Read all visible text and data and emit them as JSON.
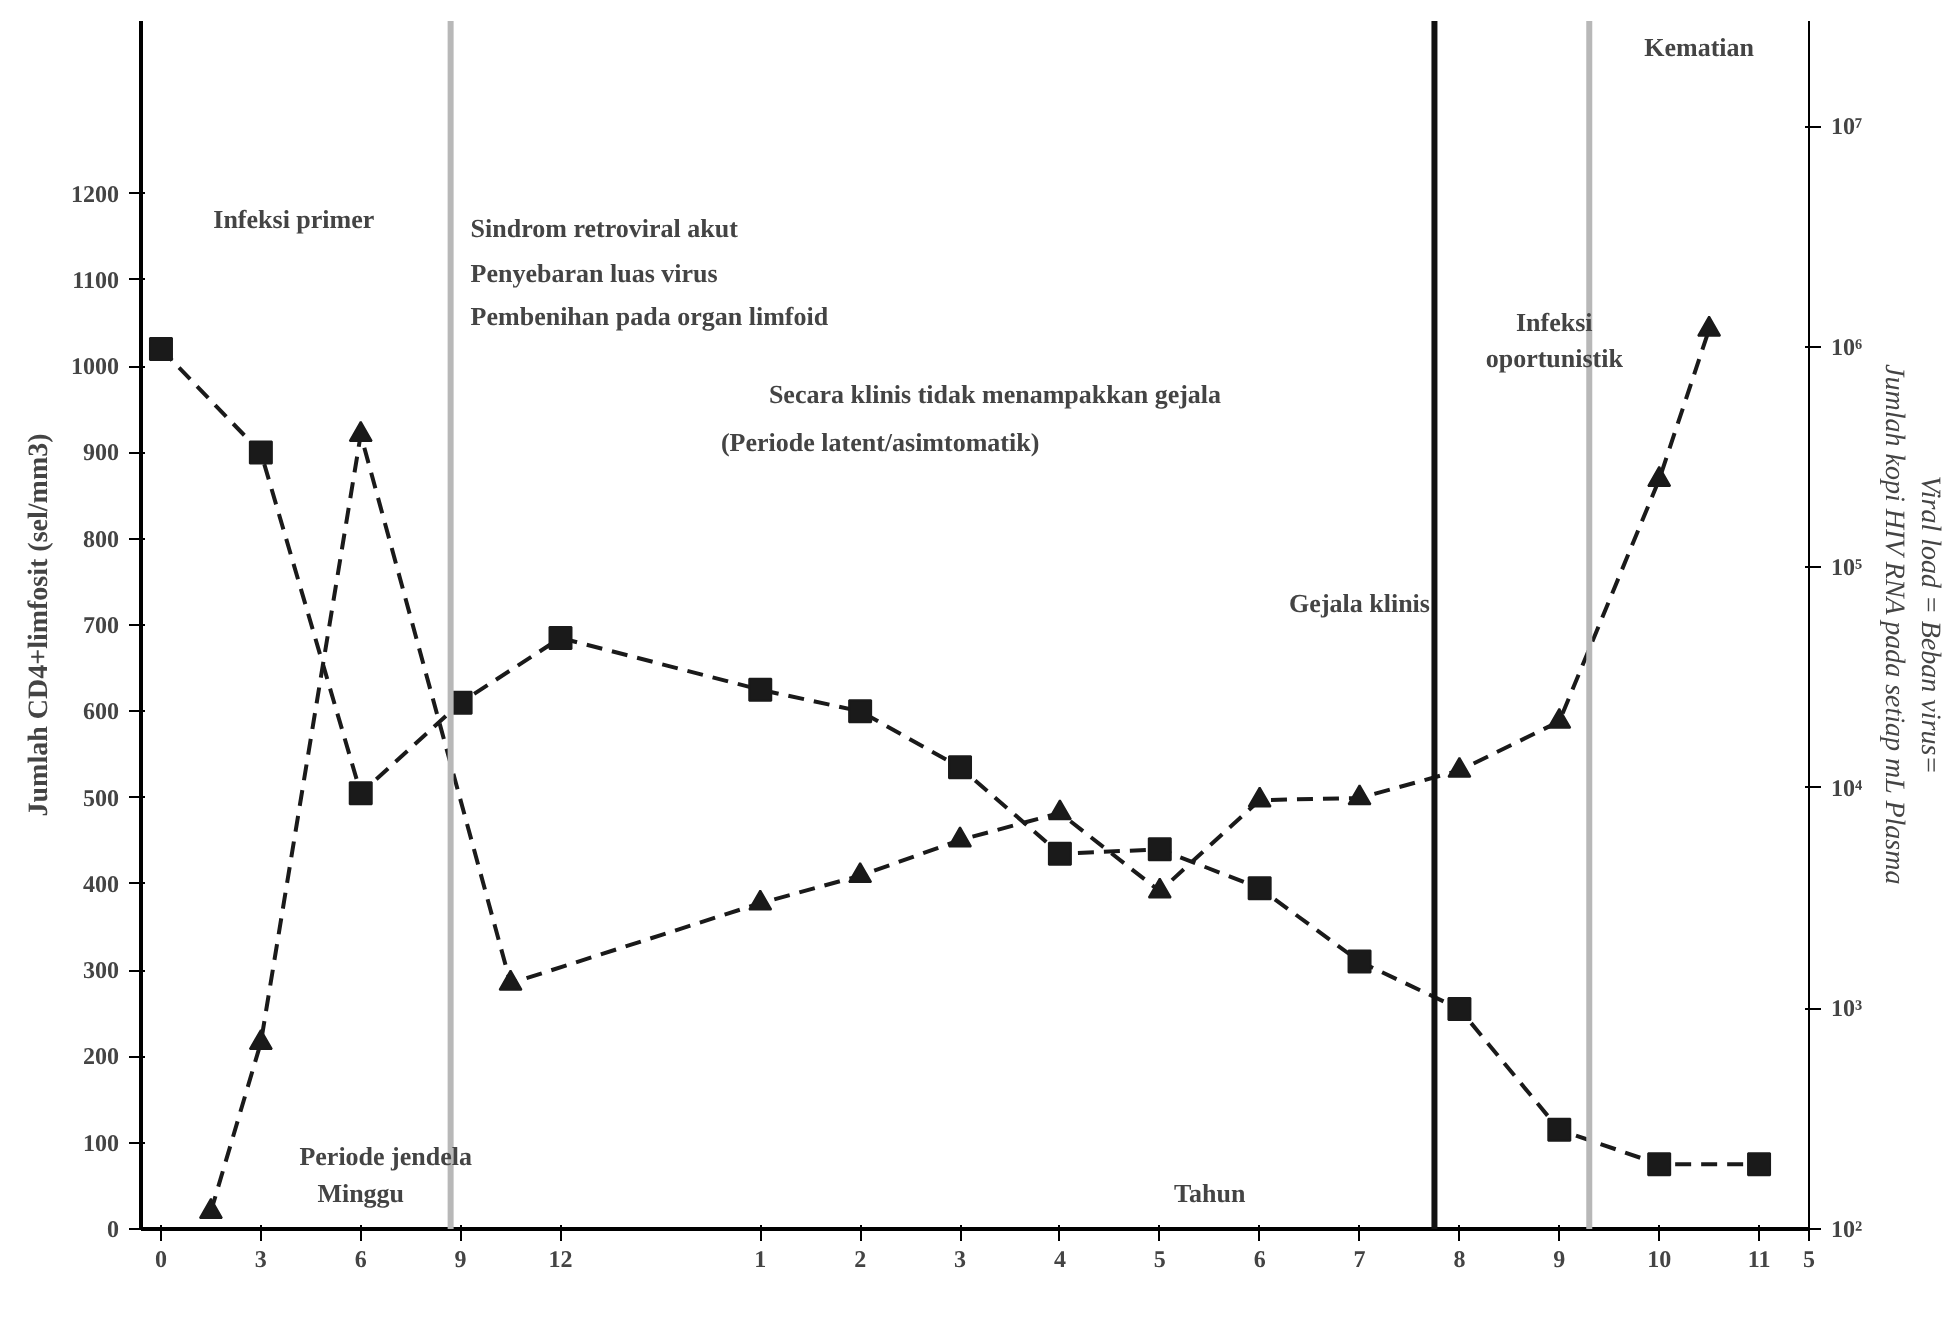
{
  "chart_data": {
    "type": "line",
    "categories": [
      "0",
      null,
      "3",
      null,
      "6",
      null,
      "9",
      null,
      "12",
      null,
      null,
      null,
      "1",
      null,
      "2",
      null,
      "3",
      null,
      "4",
      null,
      "5",
      null,
      "6",
      null,
      "7",
      null,
      "8",
      null,
      "9",
      null,
      "10",
      null,
      "11",
      "5"
    ],
    "ylim": [
      0,
      1400
    ],
    "yticks": [
      0,
      100,
      200,
      300,
      400,
      500,
      600,
      700,
      800,
      900,
      1000,
      1100,
      1200
    ],
    "y2lim": [
      100,
      30000000
    ],
    "y2ticks": [
      {
        "value": 100,
        "label": "10²"
      },
      {
        "value": 1000,
        "label": "10³"
      },
      {
        "value": 10000,
        "label": "10⁴"
      },
      {
        "value": 100000,
        "label": "10⁵"
      },
      {
        "value": 1000000,
        "label": "10⁶"
      },
      {
        "value": 10000000,
        "label": "10⁷"
      }
    ],
    "log": "y2",
    "ylabel": "Jumlah CD4+limfosit (sel/mm3)",
    "y2label": "Viral load = Beban virus=\nJumlah kopi HIV RNA pada setiap mL Plasma",
    "series": [
      {
        "color": "#1a1a1a",
        "marker": "square",
        "line_style": "dashed",
        "values": [
          1020,
          null,
          900,
          null,
          505,
          null,
          610,
          null,
          685,
          null,
          null,
          null,
          625,
          null,
          600,
          null,
          535,
          null,
          435,
          null,
          440,
          null,
          395,
          null,
          310,
          null,
          255,
          null,
          115,
          null,
          75,
          null,
          75,
          null
        ]
      },
      {
        "color": "#1a1a1a",
        "marker": "triangle",
        "line_style": "dashed",
        "axis": "y2",
        "values": [
          null,
          120,
          700,
          null,
          400000,
          null,
          null,
          1300,
          null,
          null,
          null,
          null,
          3000,
          null,
          4000,
          null,
          5800,
          null,
          7700,
          null,
          3400,
          null,
          8800,
          null,
          9000,
          null,
          12000,
          null,
          20000,
          null,
          250000,
          1200000,
          null,
          null
        ]
      }
    ],
    "grid": false,
    "annotations": [
      "Infeksi primer",
      "Sindrom retroviral akut",
      "Penyebaran luas virus",
      "Pembenihan pada organ limfoid",
      "Secara klinis tidak menampakkan gejala",
      "(Periode latent/asimtomatik)",
      "Gejala klinis",
      "Infeksi\noportunistik",
      "Kematian",
      "Periode jendela",
      "Minggu",
      "Tahun"
    ]
  }
}
